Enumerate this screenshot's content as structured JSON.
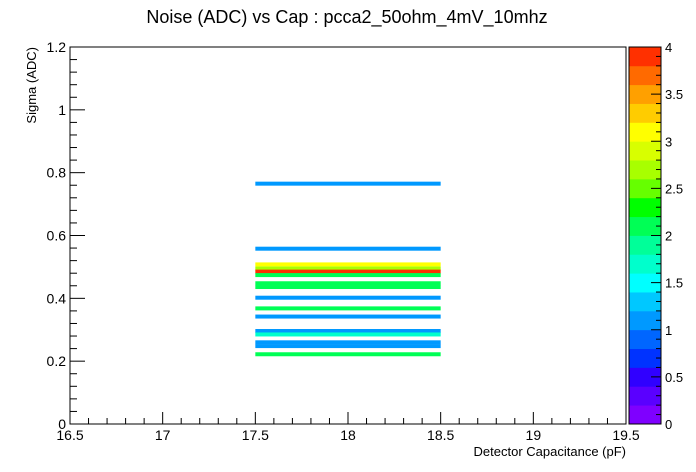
{
  "chart_data": {
    "type": "heatmap",
    "title": "Noise (ADC) vs Cap : pcca2_50ohm_4mV_10mhz",
    "xlabel": "Detector Capacitance (pF)",
    "ylabel": "Sigma (ADC)",
    "xlim": [
      16.5,
      19.5
    ],
    "ylim": [
      0,
      1.2
    ],
    "zlim": [
      0,
      4
    ],
    "x_ticks": [
      "16.5",
      "17",
      "17.5",
      "18",
      "18.5",
      "19",
      "19.5"
    ],
    "y_ticks": [
      "0",
      "0.2",
      "0.4",
      "0.6",
      "0.8",
      "1",
      "1.2"
    ],
    "z_ticks": [
      "0",
      "0.5",
      "1",
      "1.5",
      "2",
      "2.5",
      "3",
      "3.5",
      "4"
    ],
    "grid": false,
    "bins": [
      {
        "x": [
          17.5,
          18.5
        ],
        "y": 0.765,
        "z": 1.0
      },
      {
        "x": [
          17.5,
          18.5
        ],
        "y": 0.558,
        "z": 1.0
      },
      {
        "x": [
          17.5,
          18.5
        ],
        "y": 0.508,
        "z": 3.0
      },
      {
        "x": [
          17.5,
          18.5
        ],
        "y": 0.495,
        "z": 2.6
      },
      {
        "x": [
          17.5,
          18.5
        ],
        "y": 0.485,
        "z": 4.0
      },
      {
        "x": [
          17.5,
          18.5
        ],
        "y": 0.474,
        "z": 2.0
      },
      {
        "x": [
          17.5,
          18.5
        ],
        "y": 0.448,
        "z": 2.0
      },
      {
        "x": [
          17.5,
          18.5
        ],
        "y": 0.436,
        "z": 2.0
      },
      {
        "x": [
          17.5,
          18.5
        ],
        "y": 0.402,
        "z": 1.0
      },
      {
        "x": [
          17.5,
          18.5
        ],
        "y": 0.368,
        "z": 2.0
      },
      {
        "x": [
          17.5,
          18.5
        ],
        "y": 0.342,
        "z": 1.0
      },
      {
        "x": [
          17.5,
          18.5
        ],
        "y": 0.296,
        "z": 1.0
      },
      {
        "x": [
          17.5,
          18.5
        ],
        "y": 0.285,
        "z": 1.7
      },
      {
        "x": [
          17.5,
          18.5
        ],
        "y": 0.26,
        "z": 1.0
      },
      {
        "x": [
          17.5,
          18.5
        ],
        "y": 0.248,
        "z": 1.0
      },
      {
        "x": [
          17.5,
          18.5
        ],
        "y": 0.222,
        "z": 2.0
      }
    ],
    "palette": [
      "#7f00ff",
      "#5a00ff",
      "#3000ff",
      "#0033ff",
      "#0066ff",
      "#0099ff",
      "#00c8ff",
      "#00ffff",
      "#00ffcc",
      "#00ff99",
      "#00ff55",
      "#00ff00",
      "#66ff00",
      "#a8ff00",
      "#d8ff00",
      "#ffff00",
      "#ffcc00",
      "#ffa000",
      "#ff6a00",
      "#ff3000"
    ]
  }
}
